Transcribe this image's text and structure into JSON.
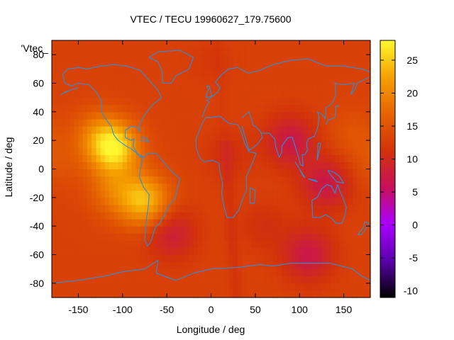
{
  "chart_data": {
    "type": "heatmap",
    "title": "VTEC / TECU 19960627_179.75600",
    "xlabel": "Longitude / deg",
    "ylabel": "Latitude / deg",
    "key_label": "'Vtec_",
    "xlim": [
      -180,
      180
    ],
    "ylim": [
      -90,
      90
    ],
    "x_ticks": [
      -150,
      -100,
      -50,
      0,
      50,
      100,
      150
    ],
    "y_ticks": [
      80,
      60,
      40,
      20,
      0,
      -20,
      -40,
      -60,
      -80
    ],
    "colorbar": {
      "range": [
        -11,
        28
      ],
      "ticks": [
        25,
        20,
        15,
        10,
        5,
        0,
        -5,
        -10
      ],
      "palette": [
        "#000000",
        "#5a00aa",
        "#aa00ff",
        "#c8105a",
        "#d2320a",
        "#e66400",
        "#f5a000",
        "#fff830"
      ]
    },
    "base_value": 13,
    "features": [
      {
        "lon": -110,
        "lat": 15,
        "value": 27
      },
      {
        "lon": -75,
        "lat": -22,
        "value": 24
      },
      {
        "lon": -130,
        "lat": 25,
        "value": 17
      },
      {
        "lon": -110,
        "lat": -15,
        "value": 18
      },
      {
        "lon": -175,
        "lat": 5,
        "value": 15
      },
      {
        "lon": 90,
        "lat": 20,
        "value": 7
      },
      {
        "lon": 130,
        "lat": -10,
        "value": 7
      },
      {
        "lon": 110,
        "lat": -60,
        "value": 7
      },
      {
        "lon": -45,
        "lat": -45,
        "value": 8
      },
      {
        "lon": 20,
        "lat": 10,
        "value": 11
      },
      {
        "lon": 60,
        "lat": -40,
        "value": 11
      },
      {
        "lon": 160,
        "lat": 25,
        "value": 15
      },
      {
        "lon": 0,
        "lat": 75,
        "value": 12
      }
    ],
    "grid": false
  }
}
